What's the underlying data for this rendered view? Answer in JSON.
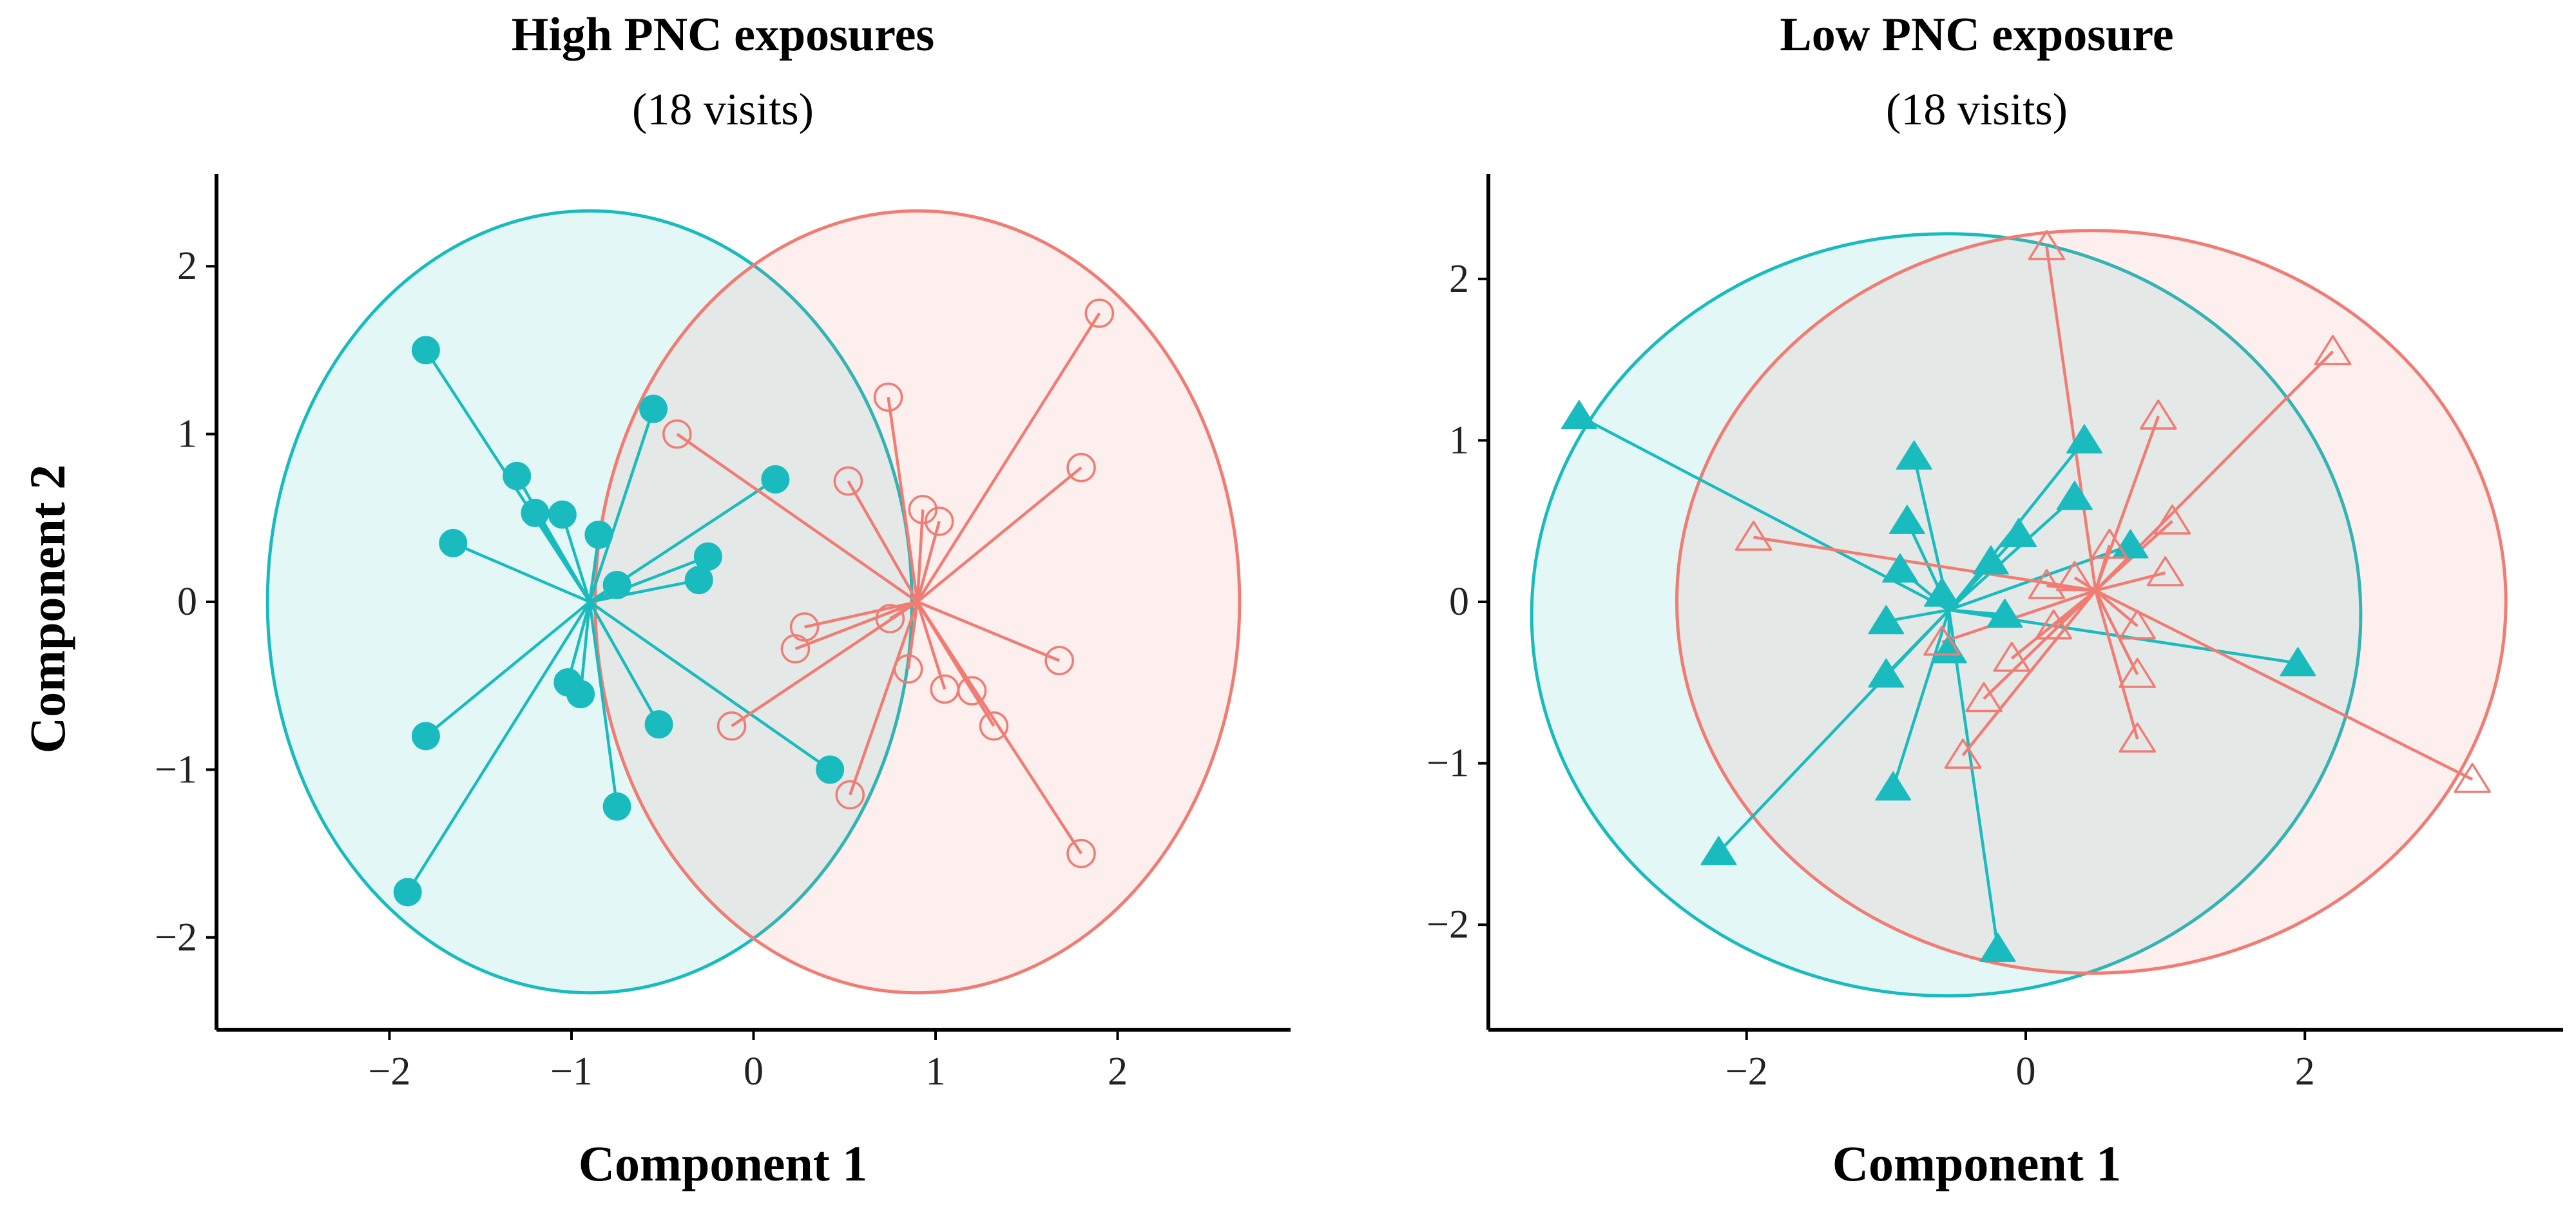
{
  "colors": {
    "teal": "#1ABBBE",
    "teal_fill": "#E3F6F8",
    "coral": "#F07C74",
    "coral_fill": "#FDEBEA",
    "axis": "#000000"
  },
  "y_axis_label": "Component 2",
  "chart_data": [
    {
      "type": "scatter",
      "title": "High PNC exposures",
      "subtitle": "(18 visits)",
      "xlabel": "Component 1",
      "ylabel": "Component 2",
      "xlim": [
        -2.95,
        2.95
      ],
      "ylim": [
        -2.55,
        2.55
      ],
      "xticks": [
        -2,
        -1,
        0,
        1,
        2
      ],
      "yticks": [
        -2,
        -1,
        0,
        1,
        2
      ],
      "marker": "circle",
      "series": [
        {
          "name": "group-teal",
          "color": "#1ABBBE",
          "filled": true,
          "centroid": [
            -0.9,
            0.0
          ],
          "ellipse": {
            "cx": -0.9,
            "cy": 0.0,
            "rx": 1.77,
            "ry": 2.33
          },
          "points": [
            [
              -1.8,
              1.5
            ],
            [
              -1.3,
              0.75
            ],
            [
              -1.2,
              0.53
            ],
            [
              -1.05,
              0.52
            ],
            [
              -1.65,
              0.35
            ],
            [
              -0.85,
              0.4
            ],
            [
              -0.55,
              1.15
            ],
            [
              -0.75,
              0.1
            ],
            [
              0.12,
              0.73
            ],
            [
              -0.25,
              0.27
            ],
            [
              -0.3,
              0.13
            ],
            [
              -1.8,
              -0.8
            ],
            [
              -1.9,
              -1.73
            ],
            [
              -1.02,
              -0.48
            ],
            [
              -0.95,
              -0.55
            ],
            [
              -0.52,
              -0.73
            ],
            [
              -0.75,
              -1.22
            ],
            [
              0.42,
              -1.0
            ]
          ]
        },
        {
          "name": "group-coral",
          "color": "#F07C74",
          "filled": false,
          "centroid": [
            0.9,
            0.0
          ],
          "ellipse": {
            "cx": 0.9,
            "cy": 0.0,
            "rx": 1.77,
            "ry": 2.33
          },
          "points": [
            [
              1.9,
              1.72
            ],
            [
              0.74,
              1.22
            ],
            [
              -0.42,
              1.0
            ],
            [
              0.52,
              0.72
            ],
            [
              0.93,
              0.55
            ],
            [
              1.02,
              0.48
            ],
            [
              1.8,
              0.8
            ],
            [
              0.28,
              -0.15
            ],
            [
              0.23,
              -0.28
            ],
            [
              0.75,
              -0.1
            ],
            [
              0.85,
              -0.4
            ],
            [
              -0.12,
              -0.74
            ],
            [
              1.05,
              -0.52
            ],
            [
              1.2,
              -0.53
            ],
            [
              1.32,
              -0.74
            ],
            [
              1.68,
              -0.35
            ],
            [
              0.53,
              -1.15
            ],
            [
              1.8,
              -1.5
            ]
          ]
        }
      ]
    },
    {
      "type": "scatter",
      "title": "Low PNC exposure",
      "subtitle": "(18 visits)",
      "xlabel": "Component 1",
      "ylabel": "Component 2",
      "xlim": [
        -3.85,
        3.85
      ],
      "ylim": [
        -2.65,
        2.65
      ],
      "xticks": [
        -2,
        0,
        2
      ],
      "yticks": [
        -2,
        -1,
        0,
        1,
        2
      ],
      "marker": "triangle",
      "series": [
        {
          "name": "group-teal",
          "color": "#1ABBBE",
          "filled": true,
          "centroid": [
            -0.55,
            -0.05
          ],
          "ellipse": {
            "cx": -0.57,
            "cy": -0.08,
            "rx": 2.97,
            "ry": 2.36
          },
          "points": [
            [
              -3.2,
              1.15
            ],
            [
              -0.8,
              0.9
            ],
            [
              -0.85,
              0.5
            ],
            [
              -0.9,
              0.2
            ],
            [
              -1.0,
              -0.12
            ],
            [
              -1.0,
              -0.45
            ],
            [
              -0.95,
              -1.15
            ],
            [
              -2.2,
              -1.55
            ],
            [
              -0.55,
              -0.3
            ],
            [
              -0.15,
              -0.08
            ],
            [
              -0.25,
              0.25
            ],
            [
              -0.05,
              0.42
            ],
            [
              0.35,
              0.65
            ],
            [
              0.42,
              1.0
            ],
            [
              0.75,
              0.35
            ],
            [
              1.95,
              -0.38
            ],
            [
              -0.6,
              0.05
            ],
            [
              -0.2,
              -2.15
            ]
          ]
        },
        {
          "name": "group-coral",
          "color": "#F07C74",
          "filled": false,
          "centroid": [
            0.5,
            0.07
          ],
          "ellipse": {
            "cx": 0.47,
            "cy": 0.0,
            "rx": 2.97,
            "ry": 2.3
          },
          "points": [
            [
              0.15,
              2.2
            ],
            [
              2.2,
              1.55
            ],
            [
              0.95,
              1.15
            ],
            [
              -1.95,
              0.4
            ],
            [
              0.6,
              0.35
            ],
            [
              0.35,
              0.15
            ],
            [
              0.15,
              0.1
            ],
            [
              0.2,
              -0.15
            ],
            [
              1.05,
              0.5
            ],
            [
              1.0,
              0.18
            ],
            [
              0.8,
              -0.15
            ],
            [
              0.8,
              -0.45
            ],
            [
              0.8,
              -0.85
            ],
            [
              -0.45,
              -0.95
            ],
            [
              -0.3,
              -0.6
            ],
            [
              -0.1,
              -0.35
            ],
            [
              -0.6,
              -0.25
            ],
            [
              3.2,
              -1.1
            ]
          ]
        }
      ]
    }
  ]
}
